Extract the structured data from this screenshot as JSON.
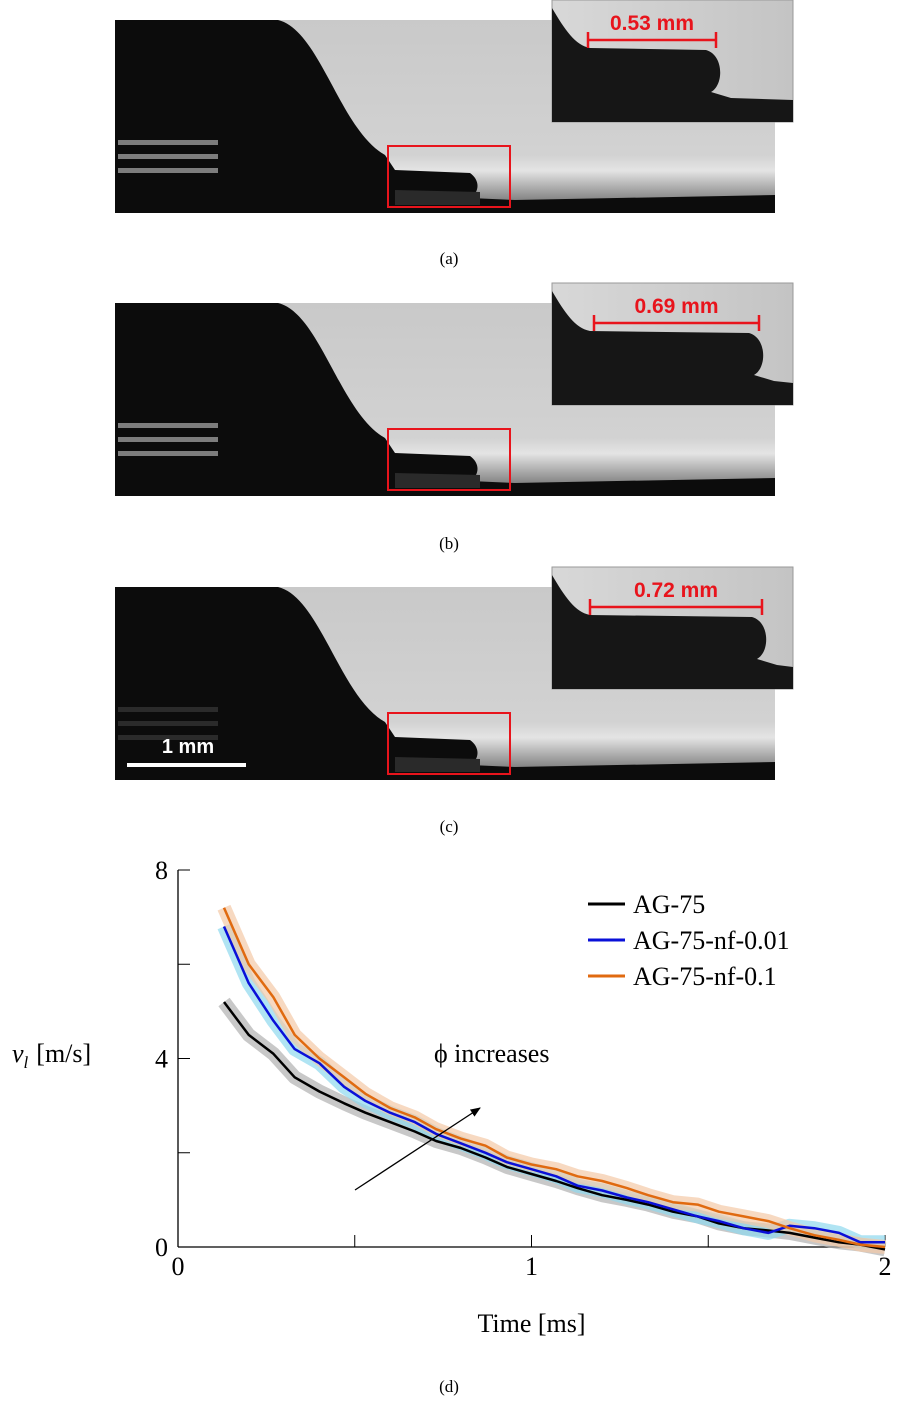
{
  "panels": [
    {
      "label": "(a)",
      "measurement": "0.53 mm"
    },
    {
      "label": "(b)",
      "measurement": "0.69 mm"
    },
    {
      "label": "(c)",
      "measurement": "0.72 mm",
      "scale_bar": "1 mm"
    }
  ],
  "chart_data": {
    "type": "line",
    "figure_label": "(d)",
    "x_label": "Time [ms]",
    "y_label": "v",
    "y_label_sub": "l",
    "y_label_unit": "[m/s]",
    "annotation": "ϕ increases",
    "xlim": [
      0,
      2
    ],
    "xticks": [
      0,
      1,
      2
    ],
    "x_minor_ticks": [
      0.5,
      1.5
    ],
    "ylim": [
      0,
      8
    ],
    "yticks": [
      0,
      4,
      8
    ],
    "y_minor_ticks": [
      2,
      6
    ],
    "legend": "upper right",
    "x": [
      0.13,
      0.2,
      0.27,
      0.33,
      0.4,
      0.47,
      0.53,
      0.6,
      0.67,
      0.73,
      0.8,
      0.87,
      0.93,
      1.0,
      1.07,
      1.13,
      1.2,
      1.27,
      1.33,
      1.4,
      1.47,
      1.53,
      1.6,
      1.67,
      1.73,
      1.8,
      1.87,
      1.93,
      2.0
    ],
    "series": [
      {
        "name": "AG-75",
        "color": "#000000",
        "band_color": "#b0b0b0",
        "values": [
          5.2,
          4.5,
          4.1,
          3.6,
          3.3,
          3.05,
          2.85,
          2.65,
          2.45,
          2.25,
          2.1,
          1.9,
          1.7,
          1.55,
          1.4,
          1.25,
          1.1,
          1.0,
          0.9,
          0.75,
          0.65,
          0.5,
          0.4,
          0.35,
          0.3,
          0.2,
          0.1,
          0.05,
          -0.05
        ]
      },
      {
        "name": "AG-75-nf-0.01",
        "color": "#0a10d8",
        "band_color": "#8fd8ee",
        "values": [
          6.8,
          5.6,
          4.8,
          4.2,
          3.9,
          3.4,
          3.1,
          2.85,
          2.65,
          2.4,
          2.2,
          2.0,
          1.8,
          1.65,
          1.5,
          1.3,
          1.2,
          1.05,
          0.95,
          0.8,
          0.65,
          0.55,
          0.4,
          0.3,
          0.45,
          0.4,
          0.3,
          0.1,
          0.1
        ]
      },
      {
        "name": "AG-75-nf-0.1",
        "color": "#e06a10",
        "band_color": "#f4c9a6",
        "values": [
          7.2,
          6.0,
          5.3,
          4.5,
          4.0,
          3.6,
          3.25,
          2.95,
          2.75,
          2.5,
          2.3,
          2.15,
          1.9,
          1.75,
          1.65,
          1.5,
          1.4,
          1.25,
          1.1,
          0.95,
          0.9,
          0.75,
          0.65,
          0.55,
          0.4,
          0.25,
          0.15,
          0.05,
          0.0
        ]
      }
    ]
  }
}
